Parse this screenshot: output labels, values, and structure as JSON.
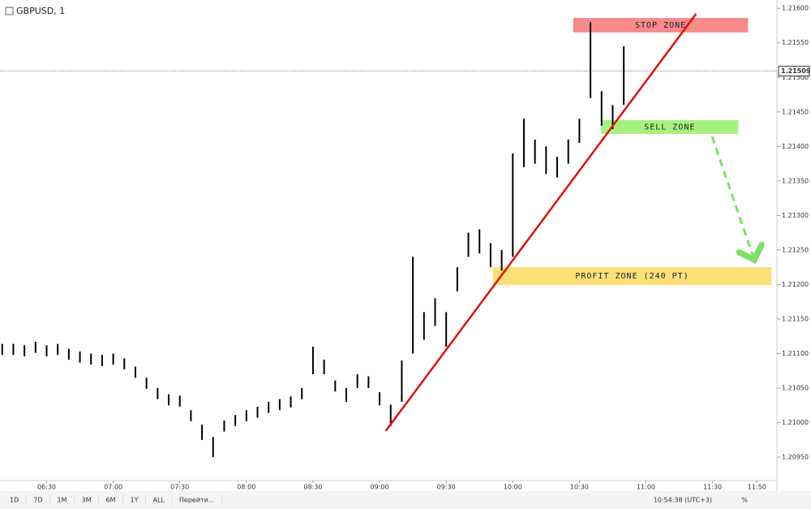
{
  "title": "GBPUSD, 1",
  "toolbar": [
    "1D",
    "7D",
    "1M",
    "3M",
    "6M",
    "1Y",
    "ALL",
    "Перейти..."
  ],
  "clock": "10:54:38 (UTC+3)",
  "percent": "%",
  "chart_data": {
    "type": "ohlc",
    "x": [
      370,
      375,
      380,
      385,
      390,
      395,
      400,
      405,
      410,
      415,
      420,
      425,
      430,
      435,
      440,
      445,
      450,
      455,
      460,
      465,
      470,
      475,
      480,
      485,
      490,
      495,
      500,
      505,
      510,
      515,
      520,
      525,
      530,
      535,
      540,
      545,
      550,
      555,
      560,
      565,
      570,
      575,
      580,
      585,
      590,
      595,
      600,
      605,
      610,
      615,
      620,
      625,
      630,
      635,
      640,
      645,
      650
    ],
    "high": [
      1.21114,
      1.21114,
      1.21112,
      1.21117,
      1.21112,
      1.21114,
      1.21107,
      1.21103,
      1.211,
      1.21098,
      1.211,
      1.21093,
      1.21081,
      1.21065,
      1.2105,
      1.21041,
      1.21039,
      1.21018,
      1.20997,
      1.20979,
      1.21003,
      1.21011,
      1.21018,
      1.21023,
      1.2103,
      1.21034,
      1.21038,
      1.2105,
      1.2111,
      1.21091,
      1.21061,
      1.2105,
      1.2107,
      1.21067,
      1.21044,
      1.21026,
      1.2109,
      1.2124,
      1.2116,
      1.2118,
      1.2116,
      1.21225,
      1.21275,
      1.2128,
      1.2126,
      1.2125,
      1.2139,
      1.2144,
      1.2141,
      1.214,
      1.21385,
      1.2141,
      1.2144,
      1.2158,
      1.2148,
      1.2146,
      1.21545
    ],
    "low": [
      1.21098,
      1.21098,
      1.21096,
      1.21101,
      1.21096,
      1.21098,
      1.21091,
      1.21087,
      1.21084,
      1.21082,
      1.21084,
      1.21077,
      1.21065,
      1.21049,
      1.21034,
      1.21025,
      1.21023,
      1.21002,
      1.20975,
      1.2095,
      1.20987,
      1.20995,
      1.21002,
      1.21007,
      1.21014,
      1.21018,
      1.21022,
      1.21034,
      1.2107,
      1.2107,
      1.21045,
      1.2103,
      1.2105,
      1.2105,
      1.21025,
      1.20995,
      1.2103,
      1.211,
      1.2112,
      1.2114,
      1.2111,
      1.2119,
      1.2124,
      1.21245,
      1.21225,
      1.2122,
      1.2124,
      1.2137,
      1.21375,
      1.2136,
      1.21355,
      1.21375,
      1.21405,
      1.2147,
      1.2143,
      1.21425,
      1.2146
    ],
    "color": "#000000",
    "xlim": [
      369,
      719
    ],
    "ylim": [
      1.20916,
      1.21612
    ],
    "xticks": [
      {
        "value": 390,
        "label": "06:30"
      },
      {
        "value": 420,
        "label": "07:00"
      },
      {
        "value": 450,
        "label": "07:30"
      },
      {
        "value": 480,
        "label": "08:00"
      },
      {
        "value": 510,
        "label": "08:30"
      },
      {
        "value": 540,
        "label": "09:00"
      },
      {
        "value": 570,
        "label": "09:30"
      },
      {
        "value": 600,
        "label": "10:00"
      },
      {
        "value": 630,
        "label": "10:30"
      },
      {
        "value": 660,
        "label": "11:00"
      },
      {
        "value": 690,
        "label": "11:30"
      },
      {
        "value": 710,
        "label": "11:50"
      }
    ],
    "yticks": [
      {
        "value": 1.216,
        "label": "1.21600"
      },
      {
        "value": 1.2155,
        "label": "1.21550"
      },
      {
        "value": 1.215,
        "label": "1.21500"
      },
      {
        "value": 1.2145,
        "label": "1.21450"
      },
      {
        "value": 1.214,
        "label": "1.21400"
      },
      {
        "value": 1.2135,
        "label": "1.21350"
      },
      {
        "value": 1.213,
        "label": "1.21300"
      },
      {
        "value": 1.2125,
        "label": "1.21250"
      },
      {
        "value": 1.212,
        "label": "1.21200"
      },
      {
        "value": 1.2115,
        "label": "1.21150"
      },
      {
        "value": 1.211,
        "label": "1.21100"
      },
      {
        "value": 1.2105,
        "label": "1.21050"
      },
      {
        "value": 1.21,
        "label": "1.21000"
      },
      {
        "value": 1.2095,
        "label": "1.20950"
      }
    ],
    "last_price": {
      "value": 1.21509,
      "label": "1.21509"
    },
    "trend_line": {
      "x": [
        542.8,
        682.6
      ],
      "y": [
        1.20988,
        1.21592
      ],
      "color": "#e01010"
    },
    "zones": [
      {
        "label": "STOP ZONE",
        "color": "#f98a8a",
        "xlim": [
          627.2,
          706
        ],
        "ylim": [
          1.21565,
          1.21586
        ]
      },
      {
        "label": "SELL ZONE",
        "color": "#a6f27e",
        "xlim": [
          639.8,
          701.6
        ],
        "ylim": [
          1.21418,
          1.21438
        ]
      },
      {
        "label": "PROFIT ZONE (240 PT)",
        "color": "#fbe07a",
        "xlim": [
          591,
          716.6
        ],
        "ylim": [
          1.21199,
          1.21225
        ]
      }
    ]
  }
}
